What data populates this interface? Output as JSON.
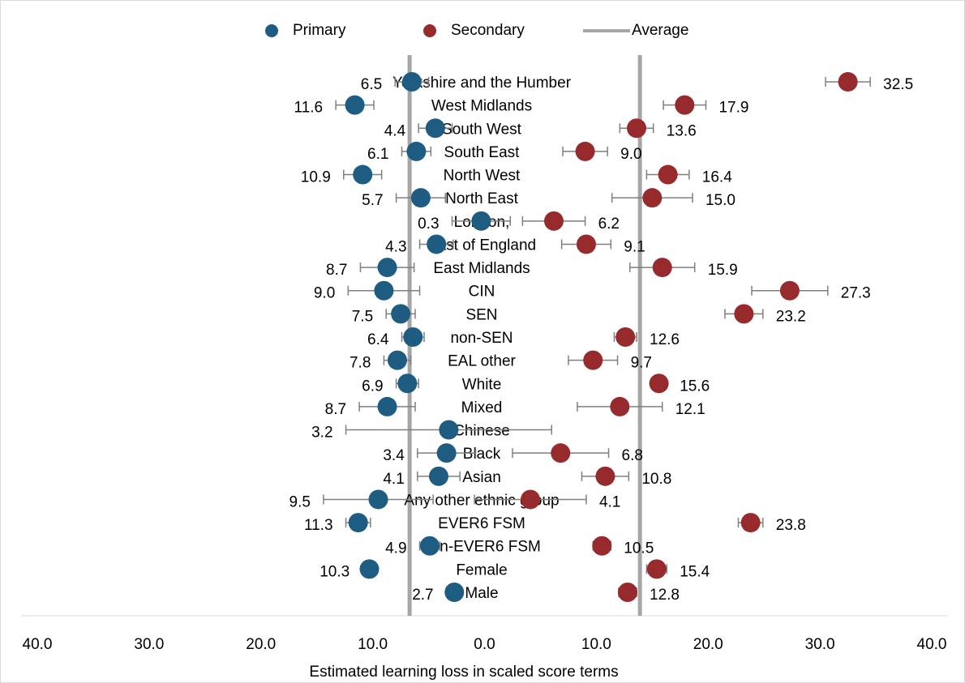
{
  "chart_data": {
    "type": "dot-errorbar",
    "x_label": "Estimated learning loss in scaled score terms",
    "categories": [
      "Yorkshire and the Humber",
      "West Midlands",
      "South West",
      "South East",
      "North West",
      "North East",
      "London,",
      "East of England",
      "East Midlands",
      "CIN",
      "SEN",
      "non-SEN",
      "EAL other",
      "White",
      "Mixed",
      "Chinese",
      "Black",
      "Asian",
      "Any other ethnic group",
      "EVER6 FSM",
      "non-EVER6 FSM",
      "Female",
      "Male"
    ],
    "series": [
      {
        "name": "Primary",
        "color": "#1f5c82",
        "values": [
          -6.5,
          -11.6,
          -4.4,
          -6.1,
          -10.9,
          -5.7,
          -0.3,
          -4.3,
          -8.7,
          -9.0,
          -7.5,
          -6.4,
          -7.8,
          -6.9,
          -8.7,
          -3.2,
          -3.4,
          -4.1,
          -9.5,
          -11.3,
          -4.9,
          -10.3,
          -2.7
        ],
        "value_labels": [
          "6.5",
          "11.6",
          "4.4",
          "6.1",
          "10.9",
          "5.7",
          "0.3",
          "4.3",
          "8.7",
          "9.0",
          "7.5",
          "6.4",
          "7.8",
          "6.9",
          "8.7",
          "3.2",
          "3.4",
          "4.1",
          "9.5",
          "11.3",
          "4.9",
          "10.3",
          "2.7"
        ],
        "errors": [
          1.5,
          1.7,
          1.5,
          1.3,
          1.7,
          2.2,
          2.6,
          1.5,
          2.4,
          3.2,
          1.3,
          1.0,
          1.2,
          1.0,
          2.5,
          9.2,
          2.6,
          1.9,
          4.9,
          1.1,
          0.9,
          0.6,
          0.7
        ]
      },
      {
        "name": "Secondary",
        "color": "#962a2c",
        "values": [
          32.5,
          17.9,
          13.6,
          9.0,
          16.4,
          15.0,
          6.2,
          9.1,
          15.9,
          27.3,
          23.2,
          12.6,
          9.7,
          15.6,
          12.1,
          null,
          6.8,
          10.8,
          4.1,
          23.8,
          10.5,
          15.4,
          12.8
        ],
        "value_labels": [
          "32.5",
          "17.9",
          "13.6",
          "9.0",
          "16.4",
          "15.0",
          "6.2",
          "9.1",
          "15.9",
          "27.3",
          "23.2",
          "12.6",
          "9.7",
          "15.6",
          "12.1",
          null,
          "6.8",
          "10.8",
          "4.1",
          "23.8",
          "10.5",
          "15.4",
          "12.8"
        ],
        "errors": [
          2.0,
          1.9,
          1.5,
          2.0,
          1.9,
          3.6,
          2.8,
          2.2,
          2.9,
          3.4,
          1.7,
          1.0,
          2.2,
          0.7,
          3.8,
          null,
          4.3,
          2.1,
          5.0,
          1.1,
          0.8,
          0.9,
          0.8
        ]
      }
    ],
    "average": {
      "name": "Average",
      "color": "#a6a6a6",
      "values": [
        -6.7,
        13.9
      ]
    },
    "xlim": [
      -40,
      40
    ],
    "xticks": [
      {
        "value": -40,
        "label": "40.0"
      },
      {
        "value": -30,
        "label": "30.0"
      },
      {
        "value": -20,
        "label": "20.0"
      },
      {
        "value": -10,
        "label": "10.0"
      },
      {
        "value": 0,
        "label": "0.0"
      },
      {
        "value": 10,
        "label": "10.0"
      },
      {
        "value": 20,
        "label": "20.0"
      },
      {
        "value": 30,
        "label": "30.0"
      },
      {
        "value": 40,
        "label": "40.0"
      }
    ],
    "legend": "top"
  }
}
